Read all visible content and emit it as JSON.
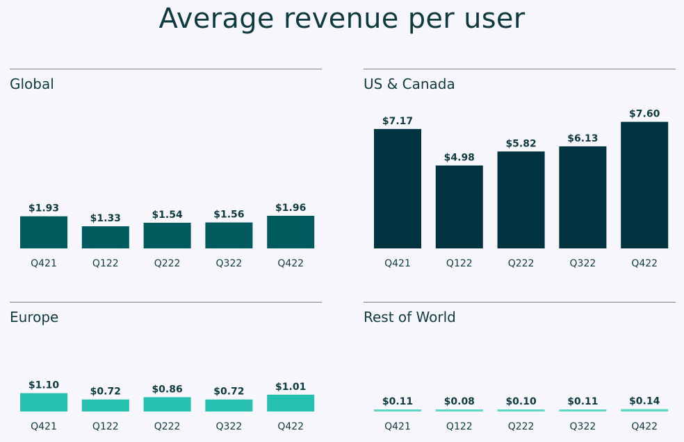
{
  "page_title": "Average revenue per user",
  "colors": {
    "background": "#f7f6fc",
    "text": "#0e3a40",
    "global": "#005a5e",
    "us_canada": "#003340",
    "europe": "#26c0b0",
    "rest_of_world": "#5fd6c8"
  },
  "chart_data": [
    {
      "type": "bar",
      "title": "Global",
      "categories": [
        "Q421",
        "Q122",
        "Q222",
        "Q322",
        "Q422"
      ],
      "values": [
        1.93,
        1.33,
        1.54,
        1.56,
        1.96
      ],
      "value_labels": [
        "$1.93",
        "$1.33",
        "$1.54",
        "$1.56",
        "$1.96"
      ],
      "ylim": [
        0,
        7.6
      ],
      "color": "#005a5e",
      "grid": false
    },
    {
      "type": "bar",
      "title": "US & Canada",
      "categories": [
        "Q421",
        "Q122",
        "Q222",
        "Q322",
        "Q422"
      ],
      "values": [
        7.17,
        4.98,
        5.82,
        6.13,
        7.6
      ],
      "value_labels": [
        "$7.17",
        "$4.98",
        "$5.82",
        "$6.13",
        "$7.60"
      ],
      "ylim": [
        0,
        7.6
      ],
      "color": "#003340",
      "grid": false
    },
    {
      "type": "bar",
      "title": "Europe",
      "categories": [
        "Q421",
        "Q122",
        "Q222",
        "Q322",
        "Q422"
      ],
      "values": [
        1.1,
        0.72,
        0.86,
        0.72,
        1.01
      ],
      "value_labels": [
        "$1.10",
        "$0.72",
        "$0.86",
        "$0.72",
        "$1.01"
      ],
      "ylim": [
        0,
        7.6
      ],
      "color": "#26c0b0",
      "grid": false
    },
    {
      "type": "bar",
      "title": "Rest of World",
      "categories": [
        "Q421",
        "Q122",
        "Q222",
        "Q322",
        "Q422"
      ],
      "values": [
        0.11,
        0.08,
        0.1,
        0.11,
        0.14
      ],
      "value_labels": [
        "$0.11",
        "$0.08",
        "$0.10",
        "$0.11",
        "$0.14"
      ],
      "ylim": [
        0,
        7.6
      ],
      "color": "#5fd6c8",
      "grid": false
    }
  ]
}
